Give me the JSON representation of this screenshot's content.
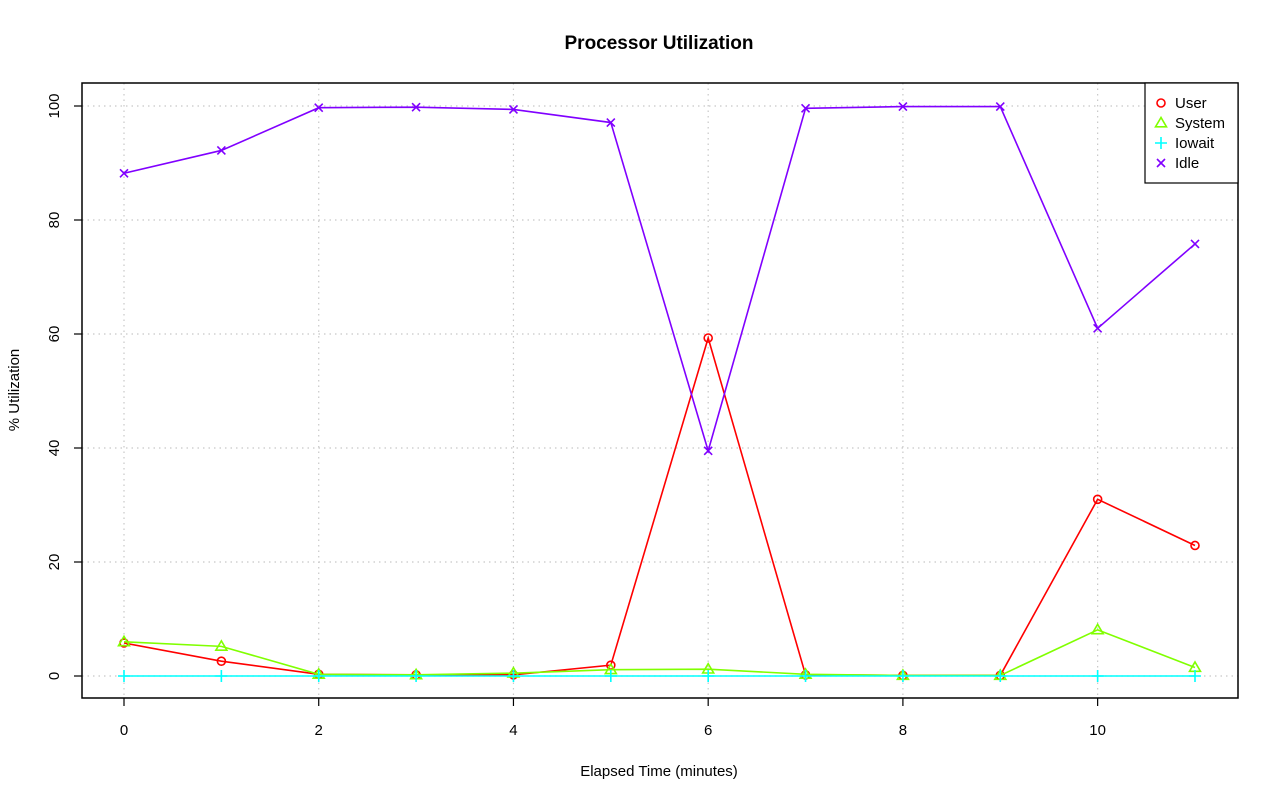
{
  "chart_data": {
    "type": "line",
    "title": "Processor Utilization",
    "xlabel": "Elapsed Time (minutes)",
    "ylabel": "% Utilization",
    "xlim": [
      0,
      11
    ],
    "ylim": [
      0,
      100
    ],
    "x_ticks": [
      "0",
      "2",
      "4",
      "6",
      "8",
      "10"
    ],
    "y_ticks": [
      "0",
      "20",
      "40",
      "60",
      "80",
      "100"
    ],
    "grid": true,
    "legend_position": "top-right",
    "x": [
      0,
      1,
      2,
      3,
      4,
      5,
      6,
      7,
      8,
      9,
      10,
      11
    ],
    "series": [
      {
        "name": "User",
        "color": "#ff0000",
        "marker": "circle",
        "values": [
          5.8,
          2.6,
          0.3,
          0.2,
          0.2,
          1.9,
          59.3,
          0.2,
          0.1,
          0.1,
          31.0,
          22.9
        ]
      },
      {
        "name": "System",
        "color": "#80ff00",
        "marker": "triangle",
        "values": [
          6.0,
          5.2,
          0.3,
          0.2,
          0.5,
          1.1,
          1.2,
          0.3,
          0.1,
          0.1,
          8.1,
          1.5
        ]
      },
      {
        "name": "Iowait",
        "color": "#00ffff",
        "marker": "plus",
        "values": [
          0,
          0,
          0,
          0,
          0,
          0,
          0,
          0,
          0,
          0,
          0,
          0
        ]
      },
      {
        "name": "Idle",
        "color": "#8000ff",
        "marker": "cross",
        "values": [
          88.2,
          92.2,
          99.7,
          99.8,
          99.4,
          97.1,
          39.5,
          99.6,
          99.9,
          99.9,
          61.0,
          75.8
        ]
      }
    ]
  }
}
